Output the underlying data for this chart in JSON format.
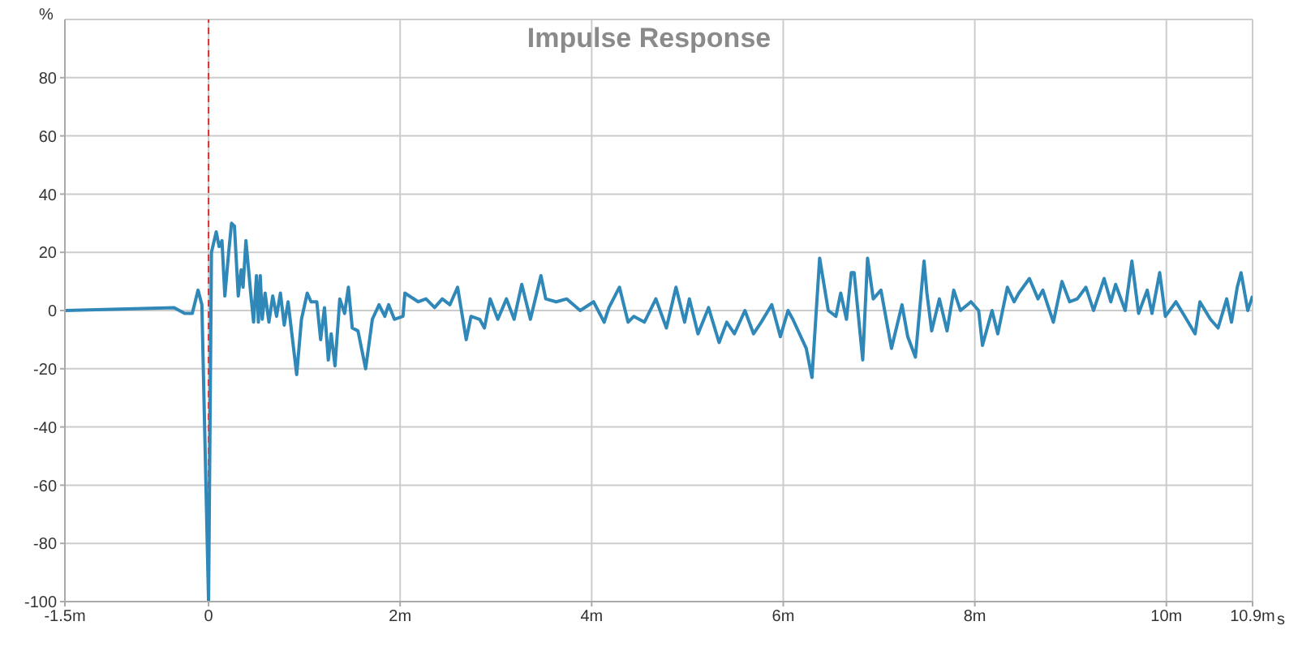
{
  "chart_data": {
    "type": "line",
    "title": "Impulse Response",
    "xlabel": "s",
    "ylabel": "%",
    "xlim": [
      -1.5,
      10.9
    ],
    "xticks": [
      {
        "value": -1.5,
        "label": "-1.5m"
      },
      0,
      {
        "value": 2,
        "label": "2m"
      },
      {
        "value": 4,
        "label": "4m"
      },
      {
        "value": 6,
        "label": "6m"
      },
      {
        "value": 8,
        "label": "8m"
      },
      {
        "value": 10,
        "label": "10m"
      },
      {
        "value": 10.9,
        "label": "10.9m"
      }
    ],
    "ylim": [
      -100,
      100
    ],
    "yticks": [
      -100,
      -80,
      -60,
      -40,
      -20,
      0,
      20,
      40,
      60,
      80
    ],
    "grid": true,
    "marker": "none",
    "line_style": "solid",
    "ref_lines": [
      {
        "axis": "x",
        "value": 0,
        "color": "#e03030",
        "line_style": "dashed"
      }
    ],
    "series": [
      {
        "color": "#2f88b8",
        "x": [
          -1.5,
          -0.36,
          -0.25,
          -0.17,
          -0.11,
          -0.07,
          0,
          0.03,
          0.08,
          0.11,
          0.14,
          0.17,
          0.21,
          0.24,
          0.27,
          0.31,
          0.34,
          0.36,
          0.39,
          0.44,
          0.47,
          0.5,
          0.52,
          0.54,
          0.56,
          0.59,
          0.63,
          0.67,
          0.71,
          0.75,
          0.79,
          0.83,
          0.92,
          0.97,
          1.03,
          1.07,
          1.13,
          1.17,
          1.21,
          1.25,
          1.28,
          1.32,
          1.37,
          1.42,
          1.46,
          1.5,
          1.56,
          1.64,
          1.71,
          1.78,
          1.84,
          1.88,
          1.94,
          2.03,
          2.05,
          2.19,
          2.27,
          2.36,
          2.44,
          2.52,
          2.6,
          2.69,
          2.74,
          2.83,
          2.88,
          2.94,
          3.02,
          3.11,
          3.19,
          3.27,
          3.36,
          3.47,
          3.52,
          3.63,
          3.74,
          3.88,
          4.02,
          4.13,
          4.18,
          4.29,
          4.38,
          4.44,
          4.55,
          4.67,
          4.78,
          4.88,
          4.97,
          5.02,
          5.11,
          5.22,
          5.33,
          5.41,
          5.49,
          5.6,
          5.69,
          5.77,
          5.88,
          5.97,
          6.05,
          6.1,
          6.24,
          6.3,
          6.38,
          6.47,
          6.55,
          6.6,
          6.66,
          6.71,
          6.74,
          6.83,
          6.88,
          6.94,
          7.02,
          7.13,
          7.24,
          7.3,
          7.38,
          7.47,
          7.5,
          7.55,
          7.63,
          7.71,
          7.78,
          7.85,
          7.96,
          8.04,
          8.08,
          8.18,
          8.24,
          8.34,
          8.41,
          8.46,
          8.57,
          8.66,
          8.71,
          8.82,
          8.91,
          8.99,
          9.07,
          9.16,
          9.24,
          9.35,
          9.42,
          9.47,
          9.57,
          9.64,
          9.71,
          9.8,
          9.85,
          9.93,
          9.99,
          10.1,
          10.21,
          10.3,
          10.35,
          10.46,
          10.54,
          10.63,
          10.68,
          10.74,
          10.78,
          10.85,
          10.9
        ],
        "values": [
          0,
          1,
          -1,
          -1,
          7,
          2,
          -100,
          20,
          27,
          22,
          24,
          5,
          20,
          30,
          29,
          5,
          14,
          8,
          24,
          6,
          -4,
          12,
          -4,
          12,
          -3,
          6,
          -4,
          5,
          -2,
          6,
          -5,
          3,
          -22,
          -3,
          6,
          3,
          3,
          -10,
          1,
          -17,
          -8,
          -19,
          4,
          -1,
          8,
          -6,
          -7,
          -20,
          -3,
          2,
          -2,
          2,
          -3,
          -2,
          6,
          3,
          4,
          1,
          4,
          2,
          8,
          -10,
          -2,
          -3,
          -6,
          4,
          -3,
          4,
          -3,
          9,
          -3,
          12,
          4,
          3,
          4,
          0,
          3,
          -4,
          1,
          8,
          -4,
          -2,
          -4,
          4,
          -6,
          8,
          -4,
          4,
          -8,
          1,
          -11,
          -4,
          -8,
          0,
          -8,
          -4,
          2,
          -9,
          0,
          -3,
          -13,
          -23,
          18,
          0,
          -2,
          6,
          -3,
          13,
          13,
          -17,
          18,
          4,
          7,
          -13,
          2,
          -9,
          -16,
          17,
          6,
          -7,
          4,
          -7,
          7,
          0,
          3,
          0,
          -12,
          0,
          -8,
          8,
          3,
          6,
          11,
          4,
          7,
          -4,
          10,
          3,
          4,
          8,
          0,
          11,
          3,
          9,
          0,
          17,
          -1,
          7,
          -1,
          13,
          -2,
          3,
          -3,
          -8,
          3,
          -3,
          -6,
          4,
          -4,
          8,
          13,
          0,
          5
        ]
      }
    ]
  }
}
